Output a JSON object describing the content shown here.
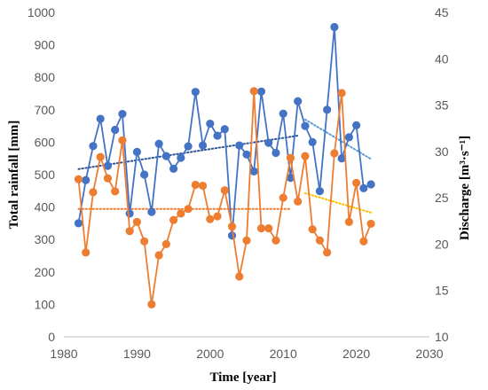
{
  "chart_data": {
    "type": "line",
    "title": "",
    "xlabel": "Time [year]",
    "ylabel_left": "Total rainfall [mm]",
    "ylabel_right": "Discharge  [m³·s⁻¹]",
    "xlim": [
      1980,
      2030
    ],
    "ylim_left": [
      0,
      1000
    ],
    "ylim_right": [
      10,
      45
    ],
    "x_ticks": [
      "1980",
      "1990",
      "2000",
      "2010",
      "2020",
      "2030"
    ],
    "y_left_ticks": [
      "0",
      "100",
      "200",
      "300",
      "400",
      "500",
      "600",
      "700",
      "800",
      "900",
      "1000"
    ],
    "y_right_ticks": [
      "10",
      "15",
      "20",
      "25",
      "30",
      "35",
      "40",
      "45"
    ],
    "grid": false,
    "legend": "none",
    "series": [
      {
        "axis": "left",
        "color": "#4472c4",
        "x": [
          1982,
          1983,
          1984,
          1985,
          1986,
          1987,
          1988,
          1989,
          1990,
          1991,
          1992,
          1993,
          1994,
          1995,
          1996,
          1997,
          1998,
          1999,
          2000,
          2001,
          2002,
          2003,
          2004,
          2005,
          2006,
          2007,
          2008,
          2009,
          2010,
          2011,
          2012,
          2013,
          2014,
          2015,
          2016,
          2017,
          2018,
          2019,
          2020,
          2021,
          2022
        ],
        "values": [
          350,
          483,
          588,
          672,
          527,
          638,
          687,
          380,
          570,
          500,
          385,
          595,
          557,
          518,
          552,
          587,
          755,
          590,
          657,
          620,
          640,
          312,
          590,
          562,
          510,
          756,
          598,
          567,
          688,
          490,
          726,
          650,
          600,
          449,
          700,
          955,
          550,
          615,
          652,
          458,
          470
        ]
      },
      {
        "axis": "right",
        "color": "#ed7d31",
        "x": [
          1982,
          1983,
          1984,
          1985,
          1986,
          1987,
          1988,
          1989,
          1990,
          1991,
          1992,
          1993,
          1994,
          1995,
          1996,
          1997,
          1998,
          1999,
          2000,
          2001,
          2002,
          2003,
          2004,
          2005,
          2006,
          2007,
          2008,
          2009,
          2010,
          2011,
          2012,
          2013,
          2014,
          2015,
          2016,
          2017,
          2018,
          2019,
          2020,
          2021,
          2022
        ],
        "values": [
          27.0,
          19.1,
          25.6,
          29.4,
          27.1,
          25.7,
          31.2,
          21.4,
          22.4,
          20.3,
          13.5,
          18.8,
          20.0,
          22.6,
          23.3,
          23.8,
          26.4,
          26.3,
          22.7,
          23.0,
          25.8,
          21.9,
          16.5,
          20.4,
          36.5,
          21.7,
          21.7,
          20.4,
          25.0,
          29.3,
          24.6,
          29.5,
          21.6,
          20.4,
          19.1,
          29.8,
          36.3,
          22.4,
          26.6,
          20.3,
          22.2
        ]
      }
    ],
    "trendlines": [
      {
        "color": "#2e5597",
        "axis": "left",
        "x": [
          1982,
          2012
        ],
        "values": [
          517,
          620
        ]
      },
      {
        "color": "#ed7d31",
        "axis": "right",
        "x": [
          1982,
          2011
        ],
        "values": [
          23.8,
          23.8
        ]
      },
      {
        "color": "#5b9bd5",
        "axis": "left",
        "x": [
          2013,
          2022
        ],
        "values": [
          670,
          548
        ]
      },
      {
        "color": "#ffc000",
        "axis": "right",
        "x": [
          2013,
          2022
        ],
        "values": [
          25.5,
          23.4
        ]
      }
    ]
  }
}
